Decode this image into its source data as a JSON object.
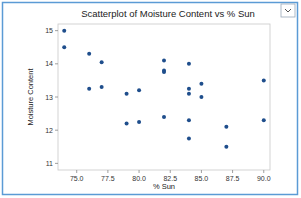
{
  "chart_data": {
    "type": "scatter",
    "title": "Scatterplot of Moisture Content vs % Sun",
    "x_label": "% Sun",
    "y_label": "Moisture Content",
    "x": [
      74,
      74,
      76,
      76,
      77,
      77,
      79,
      79,
      80,
      80,
      82,
      82,
      82,
      82,
      84,
      84,
      84,
      84,
      84,
      85,
      85,
      87,
      87,
      90,
      90
    ],
    "values": [
      15.0,
      14.5,
      14.3,
      13.25,
      14.05,
      13.3,
      13.1,
      12.2,
      13.2,
      12.25,
      14.1,
      13.8,
      13.75,
      12.4,
      14.0,
      13.25,
      13.1,
      12.3,
      11.75,
      13.4,
      13.0,
      12.1,
      11.5,
      13.5,
      12.3
    ],
    "color": "#1f4e8c",
    "marker": "circle",
    "xlim": [
      73.5,
      90.5
    ],
    "xticks": [
      {
        "value": 75,
        "label": "75.0"
      },
      77.5,
      {
        "value": 80,
        "label": "80.0"
      },
      82.5,
      {
        "value": 85,
        "label": "85.0"
      },
      87.5,
      {
        "value": 90,
        "label": "90.0"
      }
    ],
    "ylim": [
      10.8,
      15.2
    ],
    "yticks": [
      11,
      12,
      13,
      14,
      15
    ],
    "grid": false
  }
}
